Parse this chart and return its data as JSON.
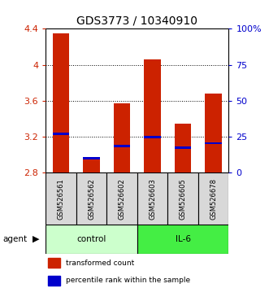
{
  "title": "GDS3773 / 10340910",
  "samples": [
    "GSM526561",
    "GSM526562",
    "GSM526602",
    "GSM526603",
    "GSM526605",
    "GSM526678"
  ],
  "bar_values": [
    4.35,
    2.95,
    3.57,
    4.06,
    3.35,
    3.68
  ],
  "bar_base": 2.8,
  "percentile_values": [
    3.23,
    2.96,
    3.1,
    3.2,
    3.08,
    3.13
  ],
  "ylim_left": [
    2.8,
    4.4
  ],
  "yticks_left": [
    2.8,
    3.2,
    3.6,
    4.0,
    4.4
  ],
  "ytick_labels_left": [
    "2.8",
    "3.2",
    "3.6",
    "4",
    "4.4"
  ],
  "yticks_right_pct": [
    0,
    25,
    50,
    75,
    100
  ],
  "ytick_labels_right": [
    "0",
    "25",
    "50",
    "75",
    "100%"
  ],
  "bar_color": "#cc2200",
  "percentile_color": "#0000cc",
  "control_label": "control",
  "il6_label": "IL-6",
  "control_color": "#ccffcc",
  "il6_color": "#44ee44",
  "sample_box_color": "#d8d8d8",
  "agent_label": "agent",
  "legend_bar_label": "transformed count",
  "legend_pct_label": "percentile rank within the sample",
  "bar_width": 0.55,
  "title_fontsize": 10,
  "tick_fontsize": 8,
  "axis_color_left": "#cc2200",
  "axis_color_right": "#0000cc"
}
